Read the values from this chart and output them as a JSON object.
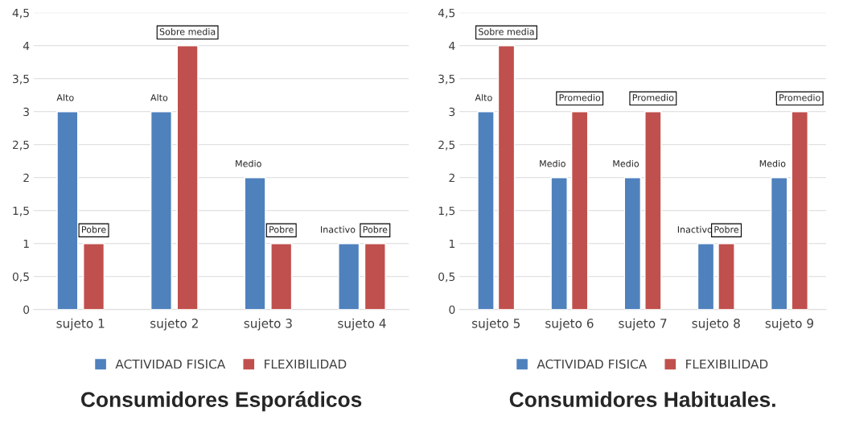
{
  "chart_data": [
    {
      "type": "bar",
      "title": "Consumidores Esporádicos",
      "categories": [
        "sujeto 1",
        "sujeto 2",
        "sujeto 3",
        "sujeto 4"
      ],
      "ylim": [
        0,
        4.5
      ],
      "yticks": [
        0,
        {
          "value": 0.5,
          "label": "0,5"
        },
        1,
        {
          "value": 1.5,
          "label": "1,5"
        },
        2,
        {
          "value": 2.5,
          "label": "2,5"
        },
        3,
        {
          "value": 3.5,
          "label": "3,5"
        },
        4,
        {
          "value": 4.5,
          "label": "4,5"
        }
      ],
      "grid": "y",
      "legend": "bottom",
      "series": [
        {
          "name": "ACTIVIDAD FISICA",
          "color": "#4f81bd",
          "values": [
            3,
            3,
            2,
            1
          ],
          "value_labels": [
            "Alto",
            "Alto",
            "Medio",
            "Inactivo"
          ]
        },
        {
          "name": "FLEXIBILIDAD",
          "color": "#c0504d",
          "values": [
            1,
            4,
            1,
            1
          ],
          "value_labels": [
            "Pobre",
            "Sobre media",
            "Pobre",
            "Pobre"
          ]
        }
      ]
    },
    {
      "type": "bar",
      "title": "Consumidores Habituales.",
      "categories": [
        "sujeto 5",
        "sujeto 6",
        "sujeto 7",
        "sujeto 8",
        "sujeto 9"
      ],
      "ylim": [
        0,
        4.5
      ],
      "yticks": [
        0,
        {
          "value": 0.5,
          "label": "0,5"
        },
        1,
        {
          "value": 1.5,
          "label": "1,5"
        },
        2,
        {
          "value": 2.5,
          "label": "2,5"
        },
        3,
        {
          "value": 3.5,
          "label": "3,5"
        },
        4,
        {
          "value": 4.5,
          "label": "4,5"
        }
      ],
      "grid": "y",
      "legend": "bottom",
      "series": [
        {
          "name": "ACTIVIDAD FISICA",
          "color": "#4f81bd",
          "values": [
            3,
            2,
            2,
            1,
            2
          ],
          "value_labels": [
            "Alto",
            "Medio",
            "Medio",
            "Inactivo",
            "Medio"
          ]
        },
        {
          "name": "FLEXIBILIDAD",
          "color": "#c0504d",
          "values": [
            4,
            3,
            3,
            1,
            3
          ],
          "value_labels": [
            "Sobre media",
            "Promedio",
            "Promedio",
            "Pobre",
            "Promedio"
          ]
        }
      ]
    }
  ]
}
